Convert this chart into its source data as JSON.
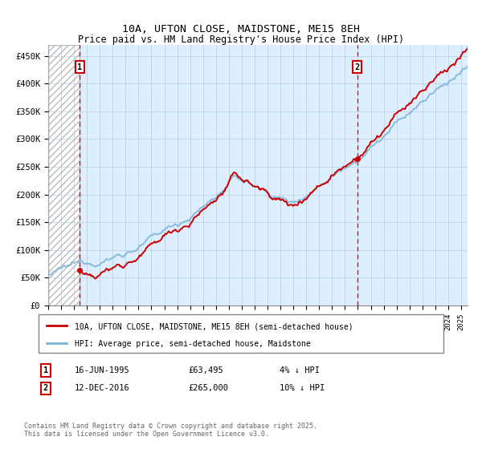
{
  "title_line1": "10A, UFTON CLOSE, MAIDSTONE, ME15 8EH",
  "title_line2": "Price paid vs. HM Land Registry's House Price Index (HPI)",
  "ylabel_ticks": [
    "£0",
    "£50K",
    "£100K",
    "£150K",
    "£200K",
    "£250K",
    "£300K",
    "£350K",
    "£400K",
    "£450K"
  ],
  "ytick_values": [
    0,
    50000,
    100000,
    150000,
    200000,
    250000,
    300000,
    350000,
    400000,
    450000
  ],
  "ylim": [
    0,
    470000
  ],
  "xlim_start": 1993.0,
  "xlim_end": 2025.5,
  "hpi_color": "#7ab3d8",
  "price_color": "#cc0000",
  "marker1_year": 1995.45,
  "marker1_price": 63495,
  "marker2_year": 2016.95,
  "marker2_price": 265000,
  "legend_line1": "10A, UFTON CLOSE, MAIDSTONE, ME15 8EH (semi-detached house)",
  "legend_line2": "HPI: Average price, semi-detached house, Maidstone",
  "marker1_date": "16-JUN-1995",
  "marker1_amount": "£63,495",
  "marker1_hpi": "4% ↓ HPI",
  "marker2_date": "12-DEC-2016",
  "marker2_amount": "£265,000",
  "marker2_hpi": "10% ↓ HPI",
  "footnote": "Contains HM Land Registry data © Crown copyright and database right 2025.\nThis data is licensed under the Open Government Licence v3.0.",
  "bg_color": "#ddeeff",
  "hatch_color": "#bbbbbb",
  "grid_color": "#b0c4d8"
}
